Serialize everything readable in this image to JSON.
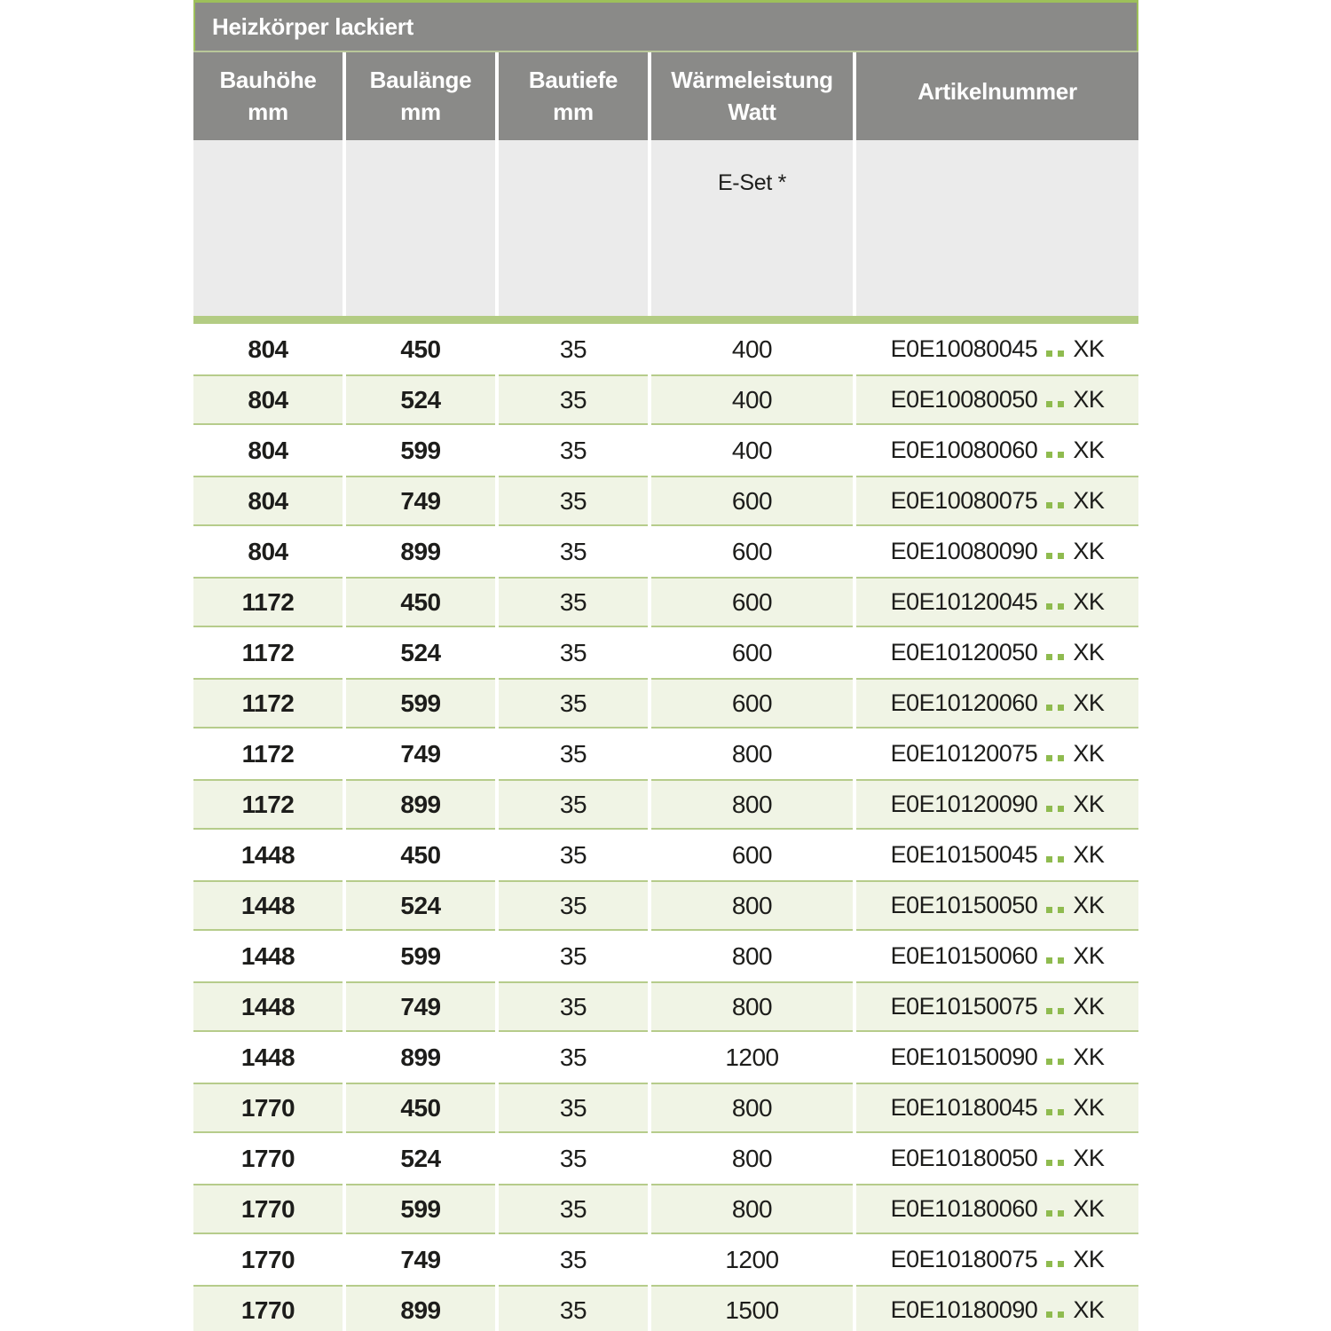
{
  "table": {
    "title": "Heizkörper lackiert",
    "columns": [
      {
        "line1": "Bauhöhe",
        "line2": "mm"
      },
      {
        "line1": "Baulänge",
        "line2": "mm"
      },
      {
        "line1": "Bautiefe",
        "line2": "mm"
      },
      {
        "line1": "Wärmeleistung",
        "line2": "Watt"
      },
      {
        "line1": "Artikelnummer",
        "line2": ""
      }
    ],
    "subheader": {
      "eset_label": "E-Set *"
    },
    "rows": [
      {
        "bauhoehe": "804",
        "baulaenge": "450",
        "bautiefe": "35",
        "watt": "400",
        "artikel_prefix": "E0E10080045",
        "artikel_suffix": "XK"
      },
      {
        "bauhoehe": "804",
        "baulaenge": "524",
        "bautiefe": "35",
        "watt": "400",
        "artikel_prefix": "E0E10080050",
        "artikel_suffix": "XK"
      },
      {
        "bauhoehe": "804",
        "baulaenge": "599",
        "bautiefe": "35",
        "watt": "400",
        "artikel_prefix": "E0E10080060",
        "artikel_suffix": "XK"
      },
      {
        "bauhoehe": "804",
        "baulaenge": "749",
        "bautiefe": "35",
        "watt": "600",
        "artikel_prefix": "E0E10080075",
        "artikel_suffix": "XK"
      },
      {
        "bauhoehe": "804",
        "baulaenge": "899",
        "bautiefe": "35",
        "watt": "600",
        "artikel_prefix": "E0E10080090",
        "artikel_suffix": "XK"
      },
      {
        "bauhoehe": "1172",
        "baulaenge": "450",
        "bautiefe": "35",
        "watt": "600",
        "artikel_prefix": "E0E10120045",
        "artikel_suffix": "XK"
      },
      {
        "bauhoehe": "1172",
        "baulaenge": "524",
        "bautiefe": "35",
        "watt": "600",
        "artikel_prefix": "E0E10120050",
        "artikel_suffix": "XK"
      },
      {
        "bauhoehe": "1172",
        "baulaenge": "599",
        "bautiefe": "35",
        "watt": "600",
        "artikel_prefix": "E0E10120060",
        "artikel_suffix": "XK"
      },
      {
        "bauhoehe": "1172",
        "baulaenge": "749",
        "bautiefe": "35",
        "watt": "800",
        "artikel_prefix": "E0E10120075",
        "artikel_suffix": "XK"
      },
      {
        "bauhoehe": "1172",
        "baulaenge": "899",
        "bautiefe": "35",
        "watt": "800",
        "artikel_prefix": "E0E10120090",
        "artikel_suffix": "XK"
      },
      {
        "bauhoehe": "1448",
        "baulaenge": "450",
        "bautiefe": "35",
        "watt": "600",
        "artikel_prefix": "E0E10150045",
        "artikel_suffix": "XK"
      },
      {
        "bauhoehe": "1448",
        "baulaenge": "524",
        "bautiefe": "35",
        "watt": "800",
        "artikel_prefix": "E0E10150050",
        "artikel_suffix": "XK"
      },
      {
        "bauhoehe": "1448",
        "baulaenge": "599",
        "bautiefe": "35",
        "watt": "800",
        "artikel_prefix": "E0E10150060",
        "artikel_suffix": "XK"
      },
      {
        "bauhoehe": "1448",
        "baulaenge": "749",
        "bautiefe": "35",
        "watt": "800",
        "artikel_prefix": "E0E10150075",
        "artikel_suffix": "XK"
      },
      {
        "bauhoehe": "1448",
        "baulaenge": "899",
        "bautiefe": "35",
        "watt": "1200",
        "artikel_prefix": "E0E10150090",
        "artikel_suffix": "XK"
      },
      {
        "bauhoehe": "1770",
        "baulaenge": "450",
        "bautiefe": "35",
        "watt": "800",
        "artikel_prefix": "E0E10180045",
        "artikel_suffix": "XK"
      },
      {
        "bauhoehe": "1770",
        "baulaenge": "524",
        "bautiefe": "35",
        "watt": "800",
        "artikel_prefix": "E0E10180050",
        "artikel_suffix": "XK"
      },
      {
        "bauhoehe": "1770",
        "baulaenge": "599",
        "bautiefe": "35",
        "watt": "800",
        "artikel_prefix": "E0E10180060",
        "artikel_suffix": "XK"
      },
      {
        "bauhoehe": "1770",
        "baulaenge": "749",
        "bautiefe": "35",
        "watt": "1200",
        "artikel_prefix": "E0E10180075",
        "artikel_suffix": "XK"
      },
      {
        "bauhoehe": "1770",
        "baulaenge": "899",
        "bautiefe": "35",
        "watt": "1500",
        "artikel_prefix": "E0E10180090",
        "artikel_suffix": "XK"
      }
    ]
  },
  "colors": {
    "header_gray": "#8a8a88",
    "accent_green": "#9dc05a",
    "divider_bar_green": "#b3cc83",
    "row_green_bg": "#f0f4e5",
    "row_green_border": "#b6cc8b",
    "dot_green": "#8fbb4f",
    "subheader_gray": "#ebebeb",
    "text_dark": "#1d1d1b"
  }
}
